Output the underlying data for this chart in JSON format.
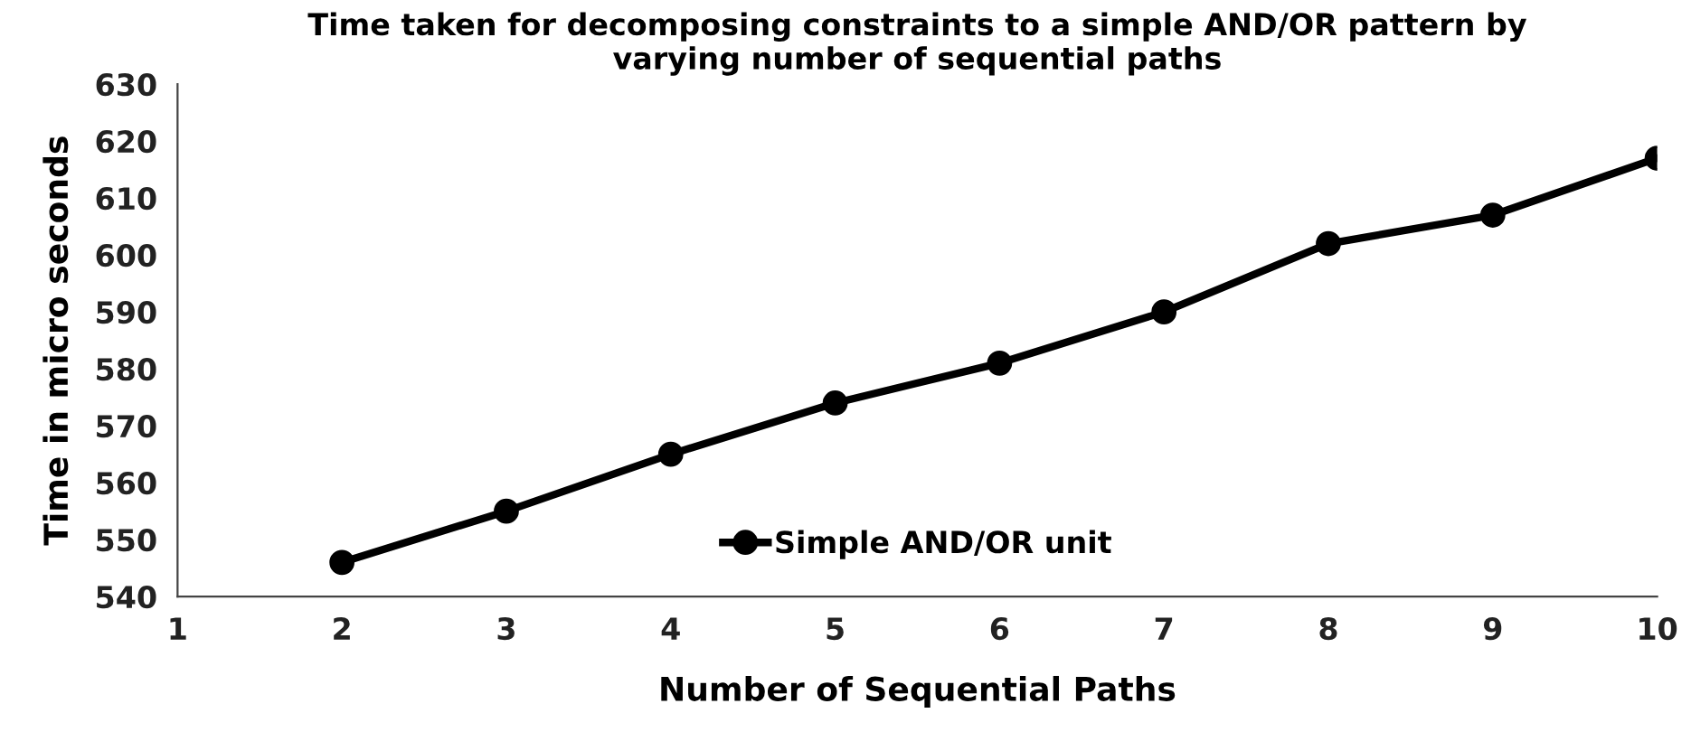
{
  "chart_data": {
    "type": "line",
    "title": "Time taken for decomposing constraints to a simple AND/OR pattern by\nvarying number of sequential paths",
    "xlabel": "Number of Sequential Paths",
    "ylabel": "Time in micro seconds",
    "x": [
      2,
      3,
      4,
      5,
      6,
      7,
      8,
      9,
      10
    ],
    "series": [
      {
        "name": "Simple AND/OR unit",
        "color": "#000000",
        "values": [
          546,
          555,
          565,
          574,
          581,
          590,
          602,
          607,
          617
        ]
      }
    ],
    "xlim": [
      1,
      10
    ],
    "xticks": [
      1,
      2,
      3,
      4,
      5,
      6,
      7,
      8,
      9,
      10
    ],
    "ylim": [
      540,
      630
    ],
    "yticks": [
      540,
      550,
      560,
      570,
      580,
      590,
      600,
      610,
      620,
      630
    ],
    "grid": false,
    "legend": "bottom",
    "marker": "circle",
    "line_style": "solid"
  }
}
